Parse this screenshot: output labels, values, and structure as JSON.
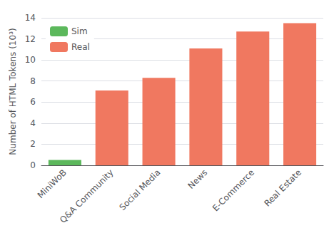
{
  "chart_data": {
    "type": "bar",
    "categories": [
      "MiniWoB",
      "Q&A Community",
      "Social Media",
      "News",
      "E-Commerce",
      "Real Estate"
    ],
    "series": [
      {
        "name": "Sim",
        "color": "#5cb85c",
        "values": [
          0.5,
          0,
          0,
          0,
          0,
          0
        ]
      },
      {
        "name": "Real",
        "color": "#f07860",
        "values": [
          0,
          7.1,
          8.3,
          11.1,
          12.7,
          13.5
        ]
      }
    ],
    "ylabel": "Number of HTML Tokens (10³)",
    "ylim": [
      0,
      14
    ],
    "yticks": [
      0,
      2,
      4,
      6,
      8,
      10,
      12,
      14
    ],
    "grid": true,
    "legend": "upper left"
  }
}
